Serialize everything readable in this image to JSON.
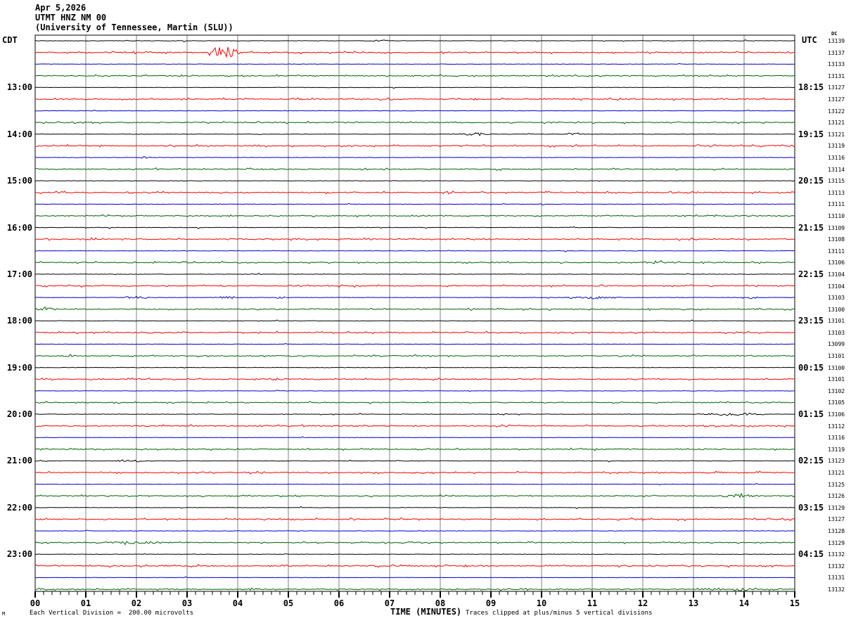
{
  "header": {
    "date": "Apr 5,2026",
    "station_line": "UTMT HNZ NM 00",
    "institution_line": "(University of Tennessee, Martin (SLU))",
    "left_axis_label": "CDT",
    "right_axis_label": "UTC",
    "dc_column_label": "DC"
  },
  "footer": {
    "xlabel": "TIME (MINUTES)",
    "scale_note": "Each Vertical Division =  200.00 microvolts",
    "clip_note": "Traces clipped at plus/minus 5 vertical divisions",
    "watermark": "M"
  },
  "chart_data": {
    "type": "line",
    "subtype": "helicorder",
    "title": "Apr 5,2026 UTMT HNZ NM 00 (University of Tennessee, Martin (SLU))",
    "xlabel": "TIME (MINUTES)",
    "xlim": [
      0,
      15
    ],
    "x_tick_labels": [
      "00",
      "01",
      "02",
      "03",
      "04",
      "05",
      "06",
      "07",
      "08",
      "09",
      "10",
      "11",
      "12",
      "13",
      "14",
      "15"
    ],
    "minor_ticks_per_minute": 6,
    "grid": "vertical-every-minute",
    "rows": 48,
    "minutes_per_row": 15,
    "row_color_cycle_names": [
      "black",
      "red",
      "blue",
      "green"
    ],
    "colors": {
      "black": "#000000",
      "red": "#ff0000",
      "blue": "#0000cc",
      "green": "#006400",
      "grid": "#808080",
      "frame": "#000000"
    },
    "left_time_labels": [
      {
        "row": 4,
        "label": "13:00"
      },
      {
        "row": 8,
        "label": "14:00"
      },
      {
        "row": 12,
        "label": "15:00"
      },
      {
        "row": 16,
        "label": "16:00"
      },
      {
        "row": 20,
        "label": "17:00"
      },
      {
        "row": 24,
        "label": "18:00"
      },
      {
        "row": 28,
        "label": "19:00"
      },
      {
        "row": 32,
        "label": "20:00"
      },
      {
        "row": 36,
        "label": "21:00"
      },
      {
        "row": 40,
        "label": "22:00"
      },
      {
        "row": 44,
        "label": "23:00"
      }
    ],
    "right_time_labels": [
      {
        "row": 4,
        "label": "18:15"
      },
      {
        "row": 8,
        "label": "19:15"
      },
      {
        "row": 12,
        "label": "20:15"
      },
      {
        "row": 16,
        "label": "21:15"
      },
      {
        "row": 20,
        "label": "22:15"
      },
      {
        "row": 24,
        "label": "23:15"
      },
      {
        "row": 28,
        "label": "00:15"
      },
      {
        "row": 32,
        "label": "01:15"
      },
      {
        "row": 36,
        "label": "02:15"
      },
      {
        "row": 40,
        "label": "03:15"
      },
      {
        "row": 44,
        "label": "04:15"
      }
    ],
    "dc_values": [
      13139,
      13137,
      13133,
      13131,
      13127,
      13127,
      13122,
      13121,
      13121,
      13119,
      13116,
      13114,
      13115,
      13113,
      13111,
      13110,
      13109,
      13108,
      13111,
      13106,
      13104,
      13104,
      13103,
      13100,
      13101,
      13103,
      13099,
      13101,
      13100,
      13101,
      13102,
      13105,
      13106,
      13112,
      13116,
      13119,
      13123,
      13121,
      13125,
      13126,
      13129,
      13127,
      13128,
      13129,
      13132,
      13132,
      13131,
      13132
    ],
    "noise_by_color": {
      "black": {
        "base": 0.3,
        "p": 0.01,
        "spike": 1.4
      },
      "red": {
        "base": 0.55,
        "p": 0.2,
        "spike": 1.5
      },
      "blue": {
        "base": 0.25,
        "p": 0.006,
        "spike": 1.2
      },
      "green": {
        "base": 0.55,
        "p": 0.16,
        "spike": 1.4
      }
    },
    "events": [
      {
        "row": 0,
        "m0": 6.6,
        "m1": 7.1,
        "amp": 1.2
      },
      {
        "row": 1,
        "m0": 3.35,
        "m1": 4.15,
        "amp": 8.0
      },
      {
        "row": 8,
        "m0": 8.3,
        "m1": 9.15,
        "amp": 2.0
      },
      {
        "row": 8,
        "m0": 10.4,
        "m1": 10.9,
        "amp": 1.6
      },
      {
        "row": 10,
        "m0": 2.05,
        "m1": 2.3,
        "amp": 1.5
      },
      {
        "row": 14,
        "m0": 9.95,
        "m1": 10.15,
        "amp": 1.5
      },
      {
        "row": 17,
        "m0": 0.85,
        "m1": 1.3,
        "amp": 2.0
      },
      {
        "row": 19,
        "m0": 11.9,
        "m1": 12.75,
        "amp": 2.2
      },
      {
        "row": 22,
        "m0": 1.65,
        "m1": 2.3,
        "amp": 2.0
      },
      {
        "row": 22,
        "m0": 3.5,
        "m1": 4.05,
        "amp": 2.0
      },
      {
        "row": 22,
        "m0": 4.7,
        "m1": 4.95,
        "amp": 2.0
      },
      {
        "row": 22,
        "m0": 10.35,
        "m1": 11.65,
        "amp": 1.8
      },
      {
        "row": 22,
        "m0": 13.85,
        "m1": 14.35,
        "amp": 2.0
      },
      {
        "row": 23,
        "m0": 0.0,
        "m1": 0.5,
        "amp": 3.0
      },
      {
        "row": 27,
        "m0": 0.55,
        "m1": 0.85,
        "amp": 2.0
      },
      {
        "row": 32,
        "m0": 9.05,
        "m1": 9.35,
        "amp": 1.8
      },
      {
        "row": 32,
        "m0": 13.0,
        "m1": 14.6,
        "amp": 1.8
      },
      {
        "row": 36,
        "m0": 1.5,
        "m1": 2.3,
        "amp": 1.8
      },
      {
        "row": 39,
        "m0": 13.4,
        "m1": 14.4,
        "amp": 2.5
      },
      {
        "row": 43,
        "m0": 1.15,
        "m1": 2.8,
        "amp": 1.8
      },
      {
        "row": 47,
        "m0": 12.9,
        "m1": 14.9,
        "amp": 1.8
      }
    ],
    "scale_note": "Each Vertical Division =  200.00 microvolts",
    "clip_note": "Traces clipped at plus/minus 5 vertical divisions"
  }
}
